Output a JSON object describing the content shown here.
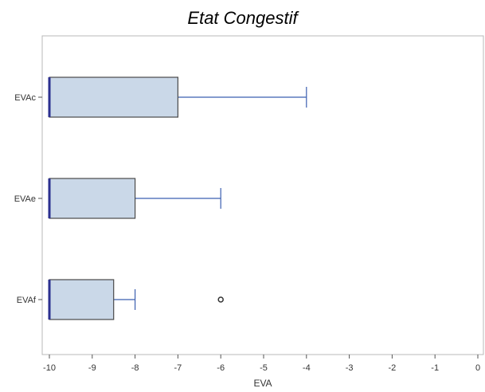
{
  "chart_data": {
    "type": "boxplot",
    "title": "Etat Congestif",
    "xlabel": "EVA",
    "ylabel": "",
    "xlim": [
      -10,
      0
    ],
    "xticks": [
      "-10",
      "-9",
      "-8",
      "-7",
      "-6",
      "-5",
      "-4",
      "-3",
      "-2",
      "-1",
      "0"
    ],
    "categories": [
      "EVAc",
      "EVAe",
      "EVAf"
    ],
    "boxes": [
      {
        "label": "EVAc",
        "whisker_low": -10,
        "q1": -10,
        "median": -10,
        "q3": -7,
        "whisker_high": -4,
        "outliers": []
      },
      {
        "label": "EVAe",
        "whisker_low": -10,
        "q1": -10,
        "median": -10,
        "q3": -8,
        "whisker_high": -6,
        "outliers": []
      },
      {
        "label": "EVAf",
        "whisker_low": -10,
        "q1": -10,
        "median": -10,
        "q3": -8.5,
        "whisker_high": -8,
        "outliers": [
          -6
        ]
      }
    ],
    "colors": {
      "box_fill": "#cad8e8",
      "box_border": "#4a4a4a",
      "whisker": "#3b5fb0",
      "median": "#2b2f8f"
    },
    "grid": false,
    "legend": "none"
  }
}
